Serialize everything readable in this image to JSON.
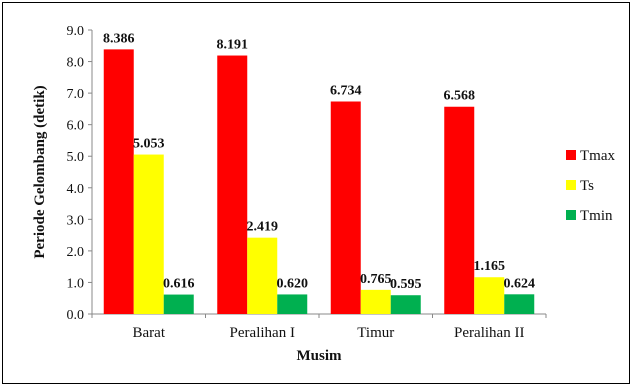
{
  "chart_data": {
    "type": "bar",
    "categories": [
      "Barat",
      "Peralihan I",
      "Timur",
      "Peralihan II"
    ],
    "series": [
      {
        "name": "Tmax",
        "values": [
          8.386,
          8.191,
          6.734,
          6.568
        ],
        "color": "#ff0000"
      },
      {
        "name": "Ts",
        "values": [
          5.053,
          2.419,
          0.765,
          1.165
        ],
        "color": "#ffff00"
      },
      {
        "name": "Tmin",
        "values": [
          0.616,
          0.62,
          0.595,
          0.624
        ],
        "color": "#00b050"
      }
    ],
    "value_labels": [
      [
        "8.386",
        "8.191",
        "6.734",
        "6.568"
      ],
      [
        "5.053",
        "2.419",
        "0.765",
        "1.165"
      ],
      [
        "0.616",
        "0.620",
        "0.595",
        "0.624"
      ]
    ],
    "yticks": [
      "0.0",
      "1.0",
      "2.0",
      "3.0",
      "4.0",
      "5.0",
      "6.0",
      "7.0",
      "8.0",
      "9.0"
    ],
    "ylim": [
      0,
      9
    ],
    "xlabel": "Musim",
    "ylabel": "Periode Gelombang (detik)",
    "legend_position": "right",
    "grid": false
  }
}
